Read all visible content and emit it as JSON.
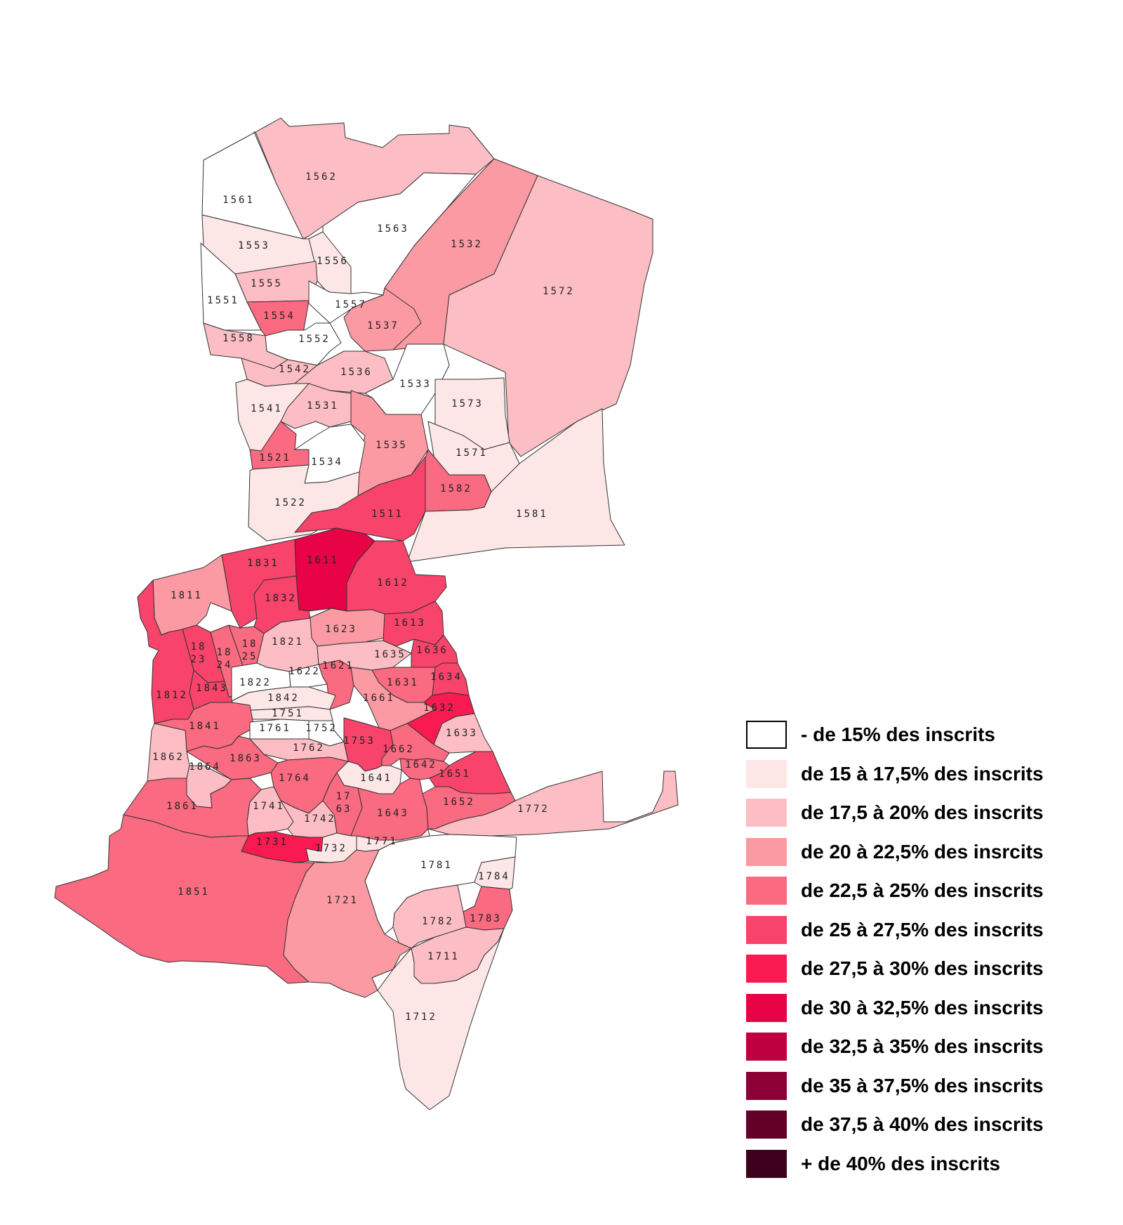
{
  "legend": {
    "items": [
      {
        "label": "- de 15% des inscrits",
        "color": "#ffffff"
      },
      {
        "label": "de 15 à 17,5% des inscrits",
        "color": "#fde6e6"
      },
      {
        "label": "de 17,5 à 20% des inscrits",
        "color": "#fcbec4"
      },
      {
        "label": "de 20 à 22,5% des insrcits",
        "color": "#fb9aa2"
      },
      {
        "label": "de 22,5 à 25% des inscrits",
        "color": "#fa6a80"
      },
      {
        "label": "de 25 à 27,5% des inscrits",
        "color": "#f8436a"
      },
      {
        "label": "de 27,5 à 30% des inscrits",
        "color": "#f81a50"
      },
      {
        "label": "de 30 à 32,5% des inscrits",
        "color": "#e80246"
      },
      {
        "label": "de 32,5 à 35% des inscrits",
        "color": "#be0040"
      },
      {
        "label": "de 35 à 37,5% des inscrits",
        "color": "#8c0035"
      },
      {
        "label": "de 37,5 à 40% des inscrits",
        "color": "#640028"
      },
      {
        "label": "+ de 40% des inscrits",
        "color": "#3c001c"
      }
    ]
  },
  "zones": [
    {
      "id": "1561",
      "label": "1561",
      "class": 0
    },
    {
      "id": "1562",
      "label": "1562",
      "class": 2
    },
    {
      "id": "1563",
      "label": "1563",
      "class": 0
    },
    {
      "id": "1532",
      "label": "1532",
      "class": 3
    },
    {
      "id": "1572",
      "label": "1572",
      "class": 2
    },
    {
      "id": "1553",
      "label": "1553",
      "class": 1
    },
    {
      "id": "1556",
      "label": "1556",
      "class": 1
    },
    {
      "id": "1555",
      "label": "1555",
      "class": 2
    },
    {
      "id": "1551",
      "label": "1551",
      "class": 0
    },
    {
      "id": "1557",
      "label": "1557",
      "class": 0
    },
    {
      "id": "1554",
      "label": "1554",
      "class": 4
    },
    {
      "id": "1552",
      "label": "1552",
      "class": 0
    },
    {
      "id": "1537",
      "label": "1537",
      "class": 3
    },
    {
      "id": "1558",
      "label": "1558",
      "class": 2
    },
    {
      "id": "1542",
      "label": "1542",
      "class": 2
    },
    {
      "id": "1536",
      "label": "1536",
      "class": 2
    },
    {
      "id": "1533",
      "label": "1533",
      "class": 0
    },
    {
      "id": "1541",
      "label": "1541",
      "class": 1
    },
    {
      "id": "1531",
      "label": "1531",
      "class": 2
    },
    {
      "id": "1573",
      "label": "1573",
      "class": 1
    },
    {
      "id": "1535",
      "label": "1535",
      "class": 3
    },
    {
      "id": "1571",
      "label": "1571",
      "class": 1
    },
    {
      "id": "1521",
      "label": "1521",
      "class": 4
    },
    {
      "id": "1534",
      "label": "1534",
      "class": 0
    },
    {
      "id": "1582",
      "label": "1582",
      "class": 4
    },
    {
      "id": "1522",
      "label": "1522",
      "class": 1
    },
    {
      "id": "1581",
      "label": "1581",
      "class": 1
    },
    {
      "id": "1511",
      "label": "1511",
      "class": 5
    },
    {
      "id": "1831",
      "label": "1831",
      "class": 5
    },
    {
      "id": "1611",
      "label": "1611",
      "class": 7
    },
    {
      "id": "1612",
      "label": "1612",
      "class": 5
    },
    {
      "id": "1811",
      "label": "1811",
      "class": 3
    },
    {
      "id": "1832",
      "label": "1832",
      "class": 5
    },
    {
      "id": "1623",
      "label": "1623",
      "class": 3
    },
    {
      "id": "1613",
      "label": "1613",
      "class": 5
    },
    {
      "id": "1823",
      "label": "18 23",
      "class": 5
    },
    {
      "id": "1824",
      "label": "18 24",
      "class": 4
    },
    {
      "id": "1825",
      "label": "18 25",
      "class": 4
    },
    {
      "id": "1821",
      "label": "1821",
      "class": 2
    },
    {
      "id": "1635",
      "label": "1635",
      "class": 2
    },
    {
      "id": "1636",
      "label": "1636",
      "class": 5
    },
    {
      "id": "1622",
      "label": "1622",
      "class": 0
    },
    {
      "id": "1621",
      "label": "1621",
      "class": 4
    },
    {
      "id": "1634",
      "label": "1634",
      "class": 5
    },
    {
      "id": "1843",
      "label": "1843",
      "class": 5
    },
    {
      "id": "1822",
      "label": "1822",
      "class": 0
    },
    {
      "id": "1631",
      "label": "1631",
      "class": 4
    },
    {
      "id": "1812",
      "label": "1812",
      "class": 5
    },
    {
      "id": "1842",
      "label": "1842",
      "class": 1
    },
    {
      "id": "1661",
      "label": "1661",
      "class": 3
    },
    {
      "id": "1632",
      "label": "1632",
      "class": 6
    },
    {
      "id": "1751",
      "label": "1751",
      "class": 1
    },
    {
      "id": "1841",
      "label": "1841",
      "class": 4
    },
    {
      "id": "1761",
      "label": "1761",
      "class": 0
    },
    {
      "id": "1752",
      "label": "1752",
      "class": 0
    },
    {
      "id": "1633",
      "label": "1633",
      "class": 2
    },
    {
      "id": "1753",
      "label": "1753",
      "class": 5
    },
    {
      "id": "1762",
      "label": "1762",
      "class": 2
    },
    {
      "id": "1662",
      "label": "1662",
      "class": 4
    },
    {
      "id": "1862",
      "label": "1862",
      "class": 2
    },
    {
      "id": "1863",
      "label": "1863",
      "class": 4
    },
    {
      "id": "1864",
      "label": "1864",
      "class": 2
    },
    {
      "id": "1764",
      "label": "1764",
      "class": 4
    },
    {
      "id": "1642",
      "label": "1642",
      "class": 4
    },
    {
      "id": "1641",
      "label": "1641",
      "class": 1
    },
    {
      "id": "1651",
      "label": "1651",
      "class": 5
    },
    {
      "id": "1861",
      "label": "1861",
      "class": 4
    },
    {
      "id": "1741",
      "label": "1741",
      "class": 2
    },
    {
      "id": "1742",
      "label": "1742",
      "class": 2
    },
    {
      "id": "1763",
      "label": "17 63",
      "class": 4
    },
    {
      "id": "1643",
      "label": "1643",
      "class": 4
    },
    {
      "id": "1652",
      "label": "1652",
      "class": 4
    },
    {
      "id": "1772",
      "label": "1772",
      "class": 2
    },
    {
      "id": "1731",
      "label": "1731",
      "class": 6
    },
    {
      "id": "1732",
      "label": "1732",
      "class": 1
    },
    {
      "id": "1771",
      "label": "1771",
      "class": 1
    },
    {
      "id": "1781",
      "label": "1781",
      "class": 0
    },
    {
      "id": "1784",
      "label": "1784",
      "class": 1
    },
    {
      "id": "1851",
      "label": "1851",
      "class": 4
    },
    {
      "id": "1721",
      "label": "1721",
      "class": 3
    },
    {
      "id": "1783",
      "label": "1783",
      "class": 4
    },
    {
      "id": "1782",
      "label": "1782",
      "class": 2
    },
    {
      "id": "1711",
      "label": "1711",
      "class": 2
    },
    {
      "id": "1712",
      "label": "1712",
      "class": 1
    }
  ]
}
